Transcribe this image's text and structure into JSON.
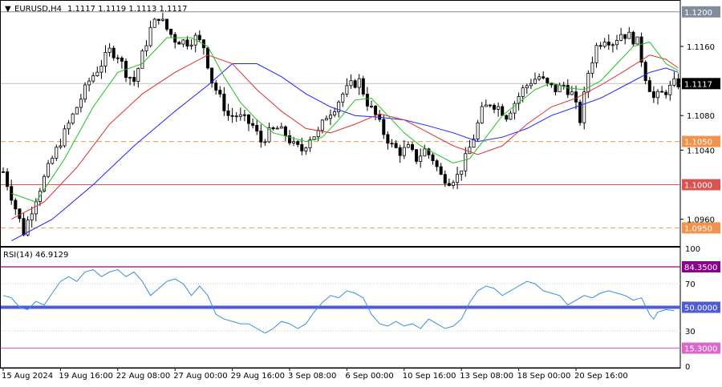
{
  "chart_data": [
    {
      "type": "candlestick",
      "symbol_label": "EURUSD,H4",
      "ohlc_label": "1.1117 1.1119 1.1113 1.1117",
      "ylim": [
        1.093,
        1.121
      ],
      "y_ticks": [
        "1.1160",
        "1.1080",
        "1.1040",
        "1.0960"
      ],
      "y_tick_values": [
        1.116,
        1.108,
        1.104,
        1.096
      ],
      "current_price": 1.1117,
      "current_price_label": "1.1117",
      "levels": [
        {
          "value": 1.12,
          "label": "1.1200",
          "style": "solid",
          "color": "#7f8c9c"
        },
        {
          "value": 1.105,
          "label": "1.1050",
          "style": "dashed",
          "color": "#f2924b"
        },
        {
          "value": 1.1,
          "label": "1.1000",
          "style": "solid",
          "color": "#d9534f"
        },
        {
          "value": 1.095,
          "label": "1.0950",
          "style": "dashed",
          "color": "#f2924b"
        }
      ],
      "close_path": [
        [
          0,
          1.1015
        ],
        [
          5,
          1.0945
        ],
        [
          8,
          1.0985
        ],
        [
          12,
          1.103
        ],
        [
          15,
          1.106
        ],
        [
          18,
          1.109
        ],
        [
          21,
          1.112
        ],
        [
          24,
          1.114
        ],
        [
          26,
          1.1155
        ],
        [
          28,
          1.115
        ],
        [
          30,
          1.113
        ],
        [
          32,
          1.112
        ],
        [
          34,
          1.115
        ],
        [
          36,
          1.118
        ],
        [
          38,
          1.1195
        ],
        [
          40,
          1.118
        ],
        [
          42,
          1.1168
        ],
        [
          45,
          1.1165
        ],
        [
          47,
          1.117
        ],
        [
          49,
          1.116
        ],
        [
          51,
          1.112
        ],
        [
          53,
          1.11
        ],
        [
          55,
          1.108
        ],
        [
          57,
          1.108
        ],
        [
          59,
          1.1075
        ],
        [
          61,
          1.1068
        ],
        [
          63,
          1.105
        ],
        [
          65,
          1.106
        ],
        [
          67,
          1.1065
        ],
        [
          69,
          1.1058
        ],
        [
          71,
          1.1045
        ],
        [
          73,
          1.104
        ],
        [
          75,
          1.1055
        ],
        [
          77,
          1.106
        ],
        [
          79,
          1.108
        ],
        [
          81,
          1.109
        ],
        [
          83,
          1.1105
        ],
        [
          85,
          1.1115
        ],
        [
          87,
          1.112
        ],
        [
          89,
          1.1095
        ],
        [
          91,
          1.108
        ],
        [
          93,
          1.106
        ],
        [
          95,
          1.1045
        ],
        [
          97,
          1.1038
        ],
        [
          99,
          1.1042
        ],
        [
          101,
          1.103
        ],
        [
          103,
          1.104
        ],
        [
          105,
          1.103
        ],
        [
          107,
          1.101
        ],
        [
          109,
          1.1005
        ],
        [
          111,
          1.101
        ],
        [
          113,
          1.103
        ],
        [
          115,
          1.1055
        ],
        [
          117,
          1.1085
        ],
        [
          119,
          1.1095
        ],
        [
          121,
          1.109
        ],
        [
          123,
          1.108
        ],
        [
          125,
          1.1095
        ],
        [
          127,
          1.111
        ],
        [
          129,
          1.112
        ],
        [
          131,
          1.1125
        ],
        [
          133,
          1.1115
        ],
        [
          135,
          1.111
        ],
        [
          137,
          1.1115
        ],
        [
          139,
          1.1105
        ],
        [
          141,
          1.1075
        ],
        [
          143,
          1.113
        ],
        [
          145,
          1.116
        ],
        [
          147,
          1.117
        ],
        [
          149,
          1.1165
        ],
        [
          151,
          1.1175
        ],
        [
          153,
          1.1172
        ],
        [
          155,
          1.1165
        ],
        [
          157,
          1.1125
        ],
        [
          159,
          1.11
        ],
        [
          161,
          1.1105
        ],
        [
          163,
          1.1112
        ],
        [
          164,
          1.1117
        ]
      ],
      "ma_fast": [
        [
          2,
          1.099
        ],
        [
          8,
          1.098
        ],
        [
          15,
          1.103
        ],
        [
          22,
          1.109
        ],
        [
          28,
          1.113
        ],
        [
          34,
          1.114
        ],
        [
          40,
          1.117
        ],
        [
          46,
          1.117
        ],
        [
          50,
          1.116
        ],
        [
          54,
          1.1125
        ],
        [
          58,
          1.1095
        ],
        [
          62,
          1.1075
        ],
        [
          66,
          1.106
        ],
        [
          70,
          1.1055
        ],
        [
          74,
          1.105
        ],
        [
          78,
          1.1055
        ],
        [
          82,
          1.1075
        ],
        [
          86,
          1.1098
        ],
        [
          90,
          1.11
        ],
        [
          94,
          1.108
        ],
        [
          98,
          1.106
        ],
        [
          102,
          1.1045
        ],
        [
          106,
          1.1035
        ],
        [
          110,
          1.1025
        ],
        [
          114,
          1.103
        ],
        [
          118,
          1.1055
        ],
        [
          122,
          1.108
        ],
        [
          126,
          1.1095
        ],
        [
          130,
          1.111
        ],
        [
          134,
          1.1118
        ],
        [
          138,
          1.1112
        ],
        [
          142,
          1.111
        ],
        [
          146,
          1.112
        ],
        [
          150,
          1.114
        ],
        [
          154,
          1.116
        ],
        [
          158,
          1.1165
        ],
        [
          162,
          1.114
        ],
        [
          165,
          1.1132
        ]
      ],
      "ma_mid": [
        [
          2,
          1.096
        ],
        [
          10,
          1.098
        ],
        [
          18,
          1.102
        ],
        [
          26,
          1.107
        ],
        [
          34,
          1.1105
        ],
        [
          42,
          1.113
        ],
        [
          50,
          1.115
        ],
        [
          56,
          1.114
        ],
        [
          62,
          1.111
        ],
        [
          68,
          1.1085
        ],
        [
          74,
          1.1065
        ],
        [
          80,
          1.106
        ],
        [
          86,
          1.107
        ],
        [
          92,
          1.1082
        ],
        [
          98,
          1.1075
        ],
        [
          104,
          1.106
        ],
        [
          110,
          1.1045
        ],
        [
          116,
          1.1035
        ],
        [
          122,
          1.1045
        ],
        [
          128,
          1.107
        ],
        [
          134,
          1.109
        ],
        [
          140,
          1.11
        ],
        [
          146,
          1.1115
        ],
        [
          152,
          1.1132
        ],
        [
          158,
          1.115
        ],
        [
          162,
          1.1145
        ],
        [
          165,
          1.1135
        ]
      ],
      "ma_slow": [
        [
          2,
          1.0935
        ],
        [
          12,
          1.096
        ],
        [
          22,
          1.1
        ],
        [
          32,
          1.1045
        ],
        [
          42,
          1.1085
        ],
        [
          50,
          1.1115
        ],
        [
          56,
          1.114
        ],
        [
          62,
          1.114
        ],
        [
          68,
          1.1125
        ],
        [
          74,
          1.1105
        ],
        [
          80,
          1.109
        ],
        [
          86,
          1.108
        ],
        [
          92,
          1.1078
        ],
        [
          98,
          1.1075
        ],
        [
          104,
          1.1068
        ],
        [
          110,
          1.106
        ],
        [
          116,
          1.105
        ],
        [
          122,
          1.1055
        ],
        [
          128,
          1.1065
        ],
        [
          134,
          1.108
        ],
        [
          140,
          1.109
        ],
        [
          146,
          1.11
        ],
        [
          152,
          1.1115
        ],
        [
          158,
          1.113
        ],
        [
          162,
          1.1135
        ],
        [
          165,
          1.113
        ]
      ],
      "x_tick_labels": [
        "15 Aug 2024",
        "19 Aug 16:00",
        "22 Aug 08:00",
        "27 Aug 00:00",
        "29 Aug 16:00",
        "3 Sep 08:00",
        "6 Sep 00:00",
        "10 Sep 16:00",
        "13 Sep 08:00",
        "18 Sep 00:00",
        "20 Sep 16:00"
      ],
      "x_tick_index": [
        0,
        14,
        28,
        42,
        56,
        70,
        84,
        98,
        112,
        126,
        140
      ],
      "n_bars": 166
    },
    {
      "type": "line",
      "title": "RSI(14) 46.9129",
      "ylim": [
        0,
        100
      ],
      "y_ticks": [
        "100",
        "70",
        "30",
        "0"
      ],
      "y_tick_values": [
        100,
        70,
        30,
        0
      ],
      "levels": [
        {
          "value": 84.35,
          "label": "84.3500",
          "color": "#8b008b"
        },
        {
          "value": 50.0,
          "label": "50.0000",
          "color": "#4f5bd5"
        },
        {
          "value": 15.3,
          "label": "15.3000",
          "color": "#dd66cc"
        }
      ],
      "rsi": [
        [
          0,
          60
        ],
        [
          2,
          58
        ],
        [
          4,
          50
        ],
        [
          6,
          48
        ],
        [
          8,
          55
        ],
        [
          10,
          52
        ],
        [
          12,
          62
        ],
        [
          14,
          72
        ],
        [
          16,
          76
        ],
        [
          18,
          72
        ],
        [
          20,
          80
        ],
        [
          22,
          82
        ],
        [
          24,
          76
        ],
        [
          26,
          80
        ],
        [
          28,
          82
        ],
        [
          30,
          76
        ],
        [
          32,
          80
        ],
        [
          34,
          72
        ],
        [
          36,
          60
        ],
        [
          38,
          66
        ],
        [
          40,
          72
        ],
        [
          42,
          74
        ],
        [
          44,
          70
        ],
        [
          46,
          60
        ],
        [
          48,
          68
        ],
        [
          50,
          60
        ],
        [
          52,
          44
        ],
        [
          54,
          40
        ],
        [
          56,
          38
        ],
        [
          58,
          36
        ],
        [
          60,
          36
        ],
        [
          62,
          32
        ],
        [
          64,
          28
        ],
        [
          66,
          32
        ],
        [
          68,
          38
        ],
        [
          70,
          36
        ],
        [
          72,
          32
        ],
        [
          74,
          36
        ],
        [
          76,
          46
        ],
        [
          78,
          54
        ],
        [
          80,
          60
        ],
        [
          82,
          58
        ],
        [
          84,
          64
        ],
        [
          86,
          62
        ],
        [
          88,
          58
        ],
        [
          90,
          44
        ],
        [
          92,
          36
        ],
        [
          94,
          34
        ],
        [
          96,
          38
        ],
        [
          98,
          34
        ],
        [
          100,
          36
        ],
        [
          102,
          32
        ],
        [
          104,
          40
        ],
        [
          106,
          36
        ],
        [
          108,
          32
        ],
        [
          110,
          34
        ],
        [
          112,
          40
        ],
        [
          114,
          54
        ],
        [
          116,
          64
        ],
        [
          118,
          68
        ],
        [
          120,
          66
        ],
        [
          122,
          60
        ],
        [
          124,
          64
        ],
        [
          126,
          68
        ],
        [
          128,
          72
        ],
        [
          130,
          70
        ],
        [
          132,
          64
        ],
        [
          134,
          62
        ],
        [
          136,
          60
        ],
        [
          138,
          52
        ],
        [
          140,
          56
        ],
        [
          142,
          60
        ],
        [
          144,
          58
        ],
        [
          146,
          62
        ],
        [
          148,
          64
        ],
        [
          150,
          62
        ],
        [
          152,
          60
        ],
        [
          154,
          56
        ],
        [
          156,
          58
        ],
        [
          158,
          44
        ],
        [
          159,
          40
        ],
        [
          160,
          46
        ],
        [
          162,
          48
        ],
        [
          164,
          47
        ]
      ]
    }
  ]
}
